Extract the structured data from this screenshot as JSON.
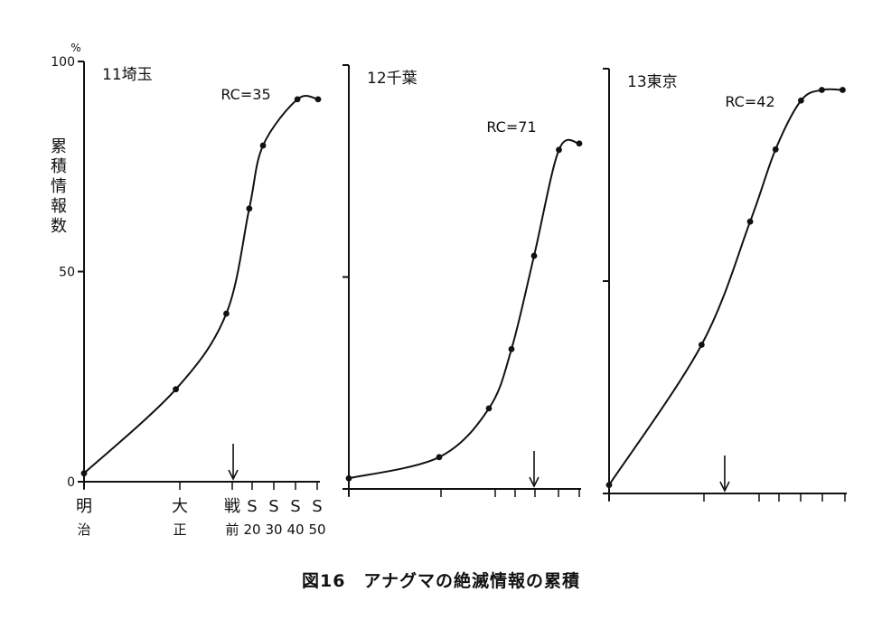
{
  "y_unit": "%",
  "y_title_chars": [
    "累",
    "積",
    "情",
    "報",
    "数"
  ],
  "y_ticks": [
    {
      "value": 100,
      "label": "100"
    },
    {
      "value": 50,
      "label": "50"
    },
    {
      "value": 0,
      "label": "0"
    }
  ],
  "x_labels": [
    {
      "x": 0,
      "lines": [
        "明",
        "治"
      ]
    },
    {
      "x": 4,
      "lines": [
        "大",
        "正"
      ]
    },
    {
      "x": 6,
      "lines": [
        "戦",
        "前"
      ]
    },
    {
      "x": 7,
      "lines": [
        "S",
        "20"
      ]
    },
    {
      "x": 8,
      "lines": [
        "S",
        "30"
      ]
    },
    {
      "x": 9,
      "lines": [
        "S",
        "40"
      ]
    },
    {
      "x": 10,
      "lines": [
        "S",
        "50"
      ]
    }
  ],
  "caption": "図16　アナグマの絶滅情報の累積",
  "chart_data": [
    {
      "type": "line",
      "title": "11埼玉",
      "annotation": "RC=35",
      "arrow_x": 6.5,
      "categories": [
        "明治",
        "大正",
        "戦前",
        "S20",
        "S30",
        "S40",
        "S50"
      ],
      "ylim": [
        0,
        100
      ],
      "series": [
        {
          "points": [
            [
              0,
              2
            ],
            [
              4,
              22
            ],
            [
              6.2,
              40
            ],
            [
              7.2,
              65
            ],
            [
              7.8,
              80
            ],
            [
              9.3,
              91
            ],
            [
              10.2,
              91
            ]
          ]
        }
      ]
    },
    {
      "type": "line",
      "title": "12千葉",
      "annotation": "RC=71",
      "arrow_x": 8.2,
      "ylim": [
        0,
        100
      ],
      "series": [
        {
          "points": [
            [
              0,
              2.5
            ],
            [
              4,
              7.5
            ],
            [
              6.2,
              19
            ],
            [
              7.2,
              33
            ],
            [
              8.2,
              55
            ],
            [
              9.3,
              80
            ],
            [
              10.2,
              81.5
            ]
          ]
        }
      ]
    },
    {
      "type": "line",
      "title": "13東京",
      "annotation": "RC=42",
      "arrow_x": 5,
      "ylim": [
        0,
        100
      ],
      "series": [
        {
          "points": [
            [
              0,
              2
            ],
            [
              4,
              35
            ],
            [
              6.1,
              64
            ],
            [
              7.2,
              81
            ],
            [
              8.3,
              92.5
            ],
            [
              9.2,
              95
            ],
            [
              10.1,
              95
            ]
          ]
        }
      ]
    }
  ]
}
